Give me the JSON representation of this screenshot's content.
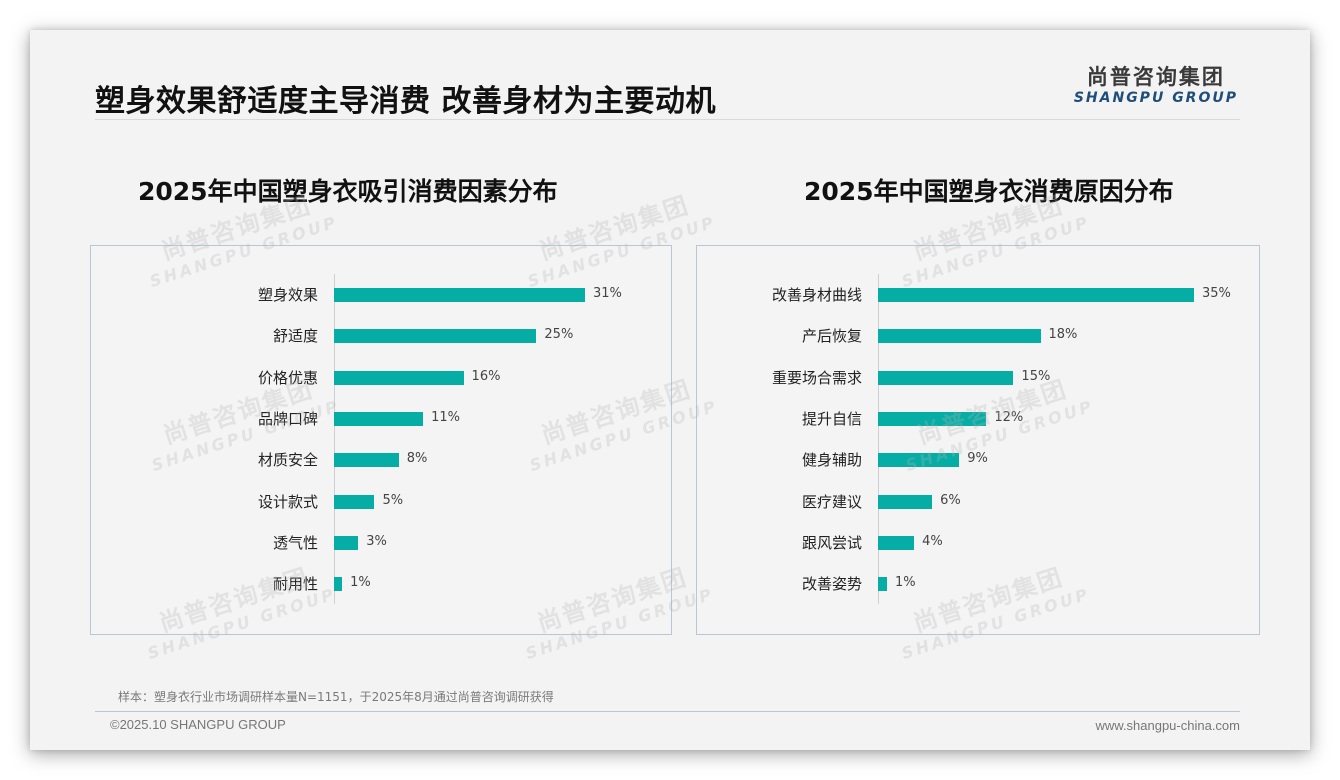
{
  "header": {
    "title": "塑身效果舒适度主导消费 改善身材为主要动机",
    "logo_cn": "尚普咨询集团",
    "logo_en": "SHANGPU GROUP"
  },
  "watermark": {
    "cn": "尚普咨询集团",
    "en": "SHANGPU GROUP"
  },
  "colors": {
    "bar": "#06ada4",
    "border": "#b8c6d8",
    "logo_en": "#1f4e79"
  },
  "chart_data": [
    {
      "type": "bar",
      "orientation": "horizontal",
      "title": "2025年中国塑身衣吸引消费因素分布",
      "categories": [
        "塑身效果",
        "舒适度",
        "价格优惠",
        "品牌口碑",
        "材质安全",
        "设计款式",
        "透气性",
        "耐用性"
      ],
      "values": [
        31,
        25,
        16,
        11,
        8,
        5,
        3,
        1
      ],
      "value_labels": [
        "31%",
        "25%",
        "16%",
        "11%",
        "8%",
        "5%",
        "3%",
        "1%"
      ],
      "unit": "%",
      "xlabel": "",
      "ylabel": "",
      "grid": false,
      "legend": null
    },
    {
      "type": "bar",
      "orientation": "horizontal",
      "title": "2025年中国塑身衣消费原因分布",
      "categories": [
        "改善身材曲线",
        "产后恢复",
        "重要场合需求",
        "提升自信",
        "健身辅助",
        "医疗建议",
        "跟风尝试",
        "改善姿势"
      ],
      "values": [
        35,
        18,
        15,
        12,
        9,
        6,
        4,
        1
      ],
      "value_labels": [
        "35%",
        "18%",
        "15%",
        "12%",
        "9%",
        "6%",
        "4%",
        "1%"
      ],
      "unit": "%",
      "xlabel": "",
      "ylabel": "",
      "grid": false,
      "legend": null
    }
  ],
  "footer": {
    "sample_note": "样本：塑身衣行业市场调研样本量N=1151，于2025年8月通过尚普咨询调研获得",
    "copyright": "©2025.10 SHANGPU GROUP",
    "website": "www.shangpu-china.com"
  }
}
